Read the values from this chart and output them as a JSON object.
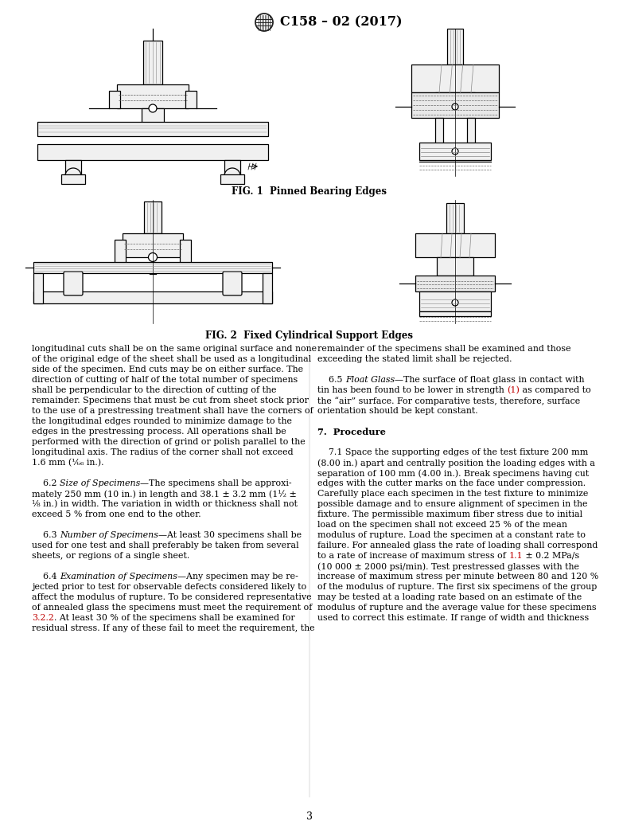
{
  "title": "C158 – 02 (2017)",
  "background_color": "#ffffff",
  "fig_caption1": "FIG. 1  Pinned Bearing Edges",
  "fig_caption2": "FIG. 2  Fixed Cylindrical Support Edges",
  "page_number": "3",
  "left_col_lines": [
    "longitudinal cuts shall be on the same original surface and none",
    "of the original edge of the sheet shall be used as a longitudinal",
    "side of the specimen. End cuts may be on either surface. The",
    "direction of cutting of half of the total number of specimens",
    "shall be perpendicular to the direction of cutting of the",
    "remainder. Specimens that must be cut from sheet stock prior",
    "to the use of a prestressing treatment shall have the corners of",
    "the longitudinal edges rounded to minimize damage to the",
    "edges in the prestressing process. All operations shall be",
    "performed with the direction of grind or polish parallel to the",
    "longitudinal axis. The radius of the corner shall not exceed",
    "1.6 mm (⅙₆ in.).",
    "",
    "    6.2 [i]Size of Specimens[/i]—The specimens shall be approxi-",
    "mately 250 mm (10 in.) in length and 38.1 ± 3.2 mm (1½ ±",
    "⅛ in.) in width. The variation in width or thickness shall not",
    "exceed 5 % from one end to the other.",
    "",
    "    6.3 [i]Number of Specimens[/i]—At least 30 specimens shall be",
    "used for one test and shall preferably be taken from several",
    "sheets, or regions of a single sheet.",
    "",
    "    6.4 [i]Examination of Specimens[/i]—Any specimen may be re-",
    "jected prior to test for observable defects considered likely to",
    "affect the modulus of rupture. To be considered representative",
    "of annealed glass the specimens must meet the requirement of",
    "[red]3.2.2[/red]. At least 30 % of the specimens shall be examined for",
    "residual stress. If any of these fail to meet the requirement, the"
  ],
  "right_col_lines": [
    "remainder of the specimens shall be examined and those",
    "exceeding the stated limit shall be rejected.",
    "",
    "    6.5 [i]Float Glass[/i]—The surface of float glass in contact with",
    "tin has been found to be lower in strength [red](1)[/red] as compared to",
    "the “air” surface. For comparative tests, therefore, surface",
    "orientation should be kept constant.",
    "",
    "[b]7.  Procedure[/b]",
    "",
    "    7.1 Space the supporting edges of the test fixture 200 mm",
    "(8.00 in.) apart and centrally position the loading edges with a",
    "separation of 100 mm (4.00 in.). Break specimens having cut",
    "edges with the cutter marks on the face under compression.",
    "Carefully place each specimen in the test fixture to minimize",
    "possible damage and to ensure alignment of specimen in the",
    "fixture. The permissible maximum fiber stress due to initial",
    "load on the specimen shall not exceed 25 % of the mean",
    "modulus of rupture. Load the specimen at a constant rate to",
    "failure. For annealed glass the rate of loading shall correspond",
    "to a rate of increase of maximum stress of [red]1.1[/red] ± 0.2 MPa/s",
    "(10 000 ± 2000 psi/min). Test prestressed glasses with the",
    "increase of maximum stress per minute between 80 and 120 %",
    "of the modulus of rupture. The first six specimens of the group",
    "may be tested at a loading rate based on an estimate of the",
    "modulus of rupture and the average value for these specimens",
    "used to correct this estimate. If range of width and thickness"
  ]
}
